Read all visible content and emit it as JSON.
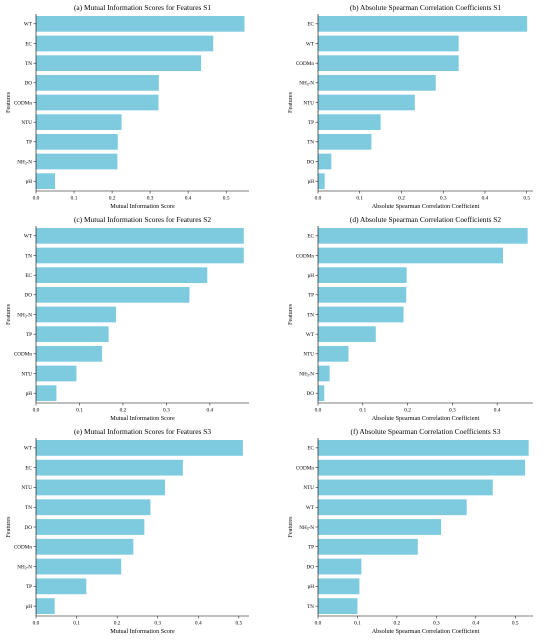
{
  "figure": {
    "bar_color": "#7ecbe0",
    "axis_color": "#000000",
    "background": "#ffffff"
  },
  "chart_data": [
    {
      "type": "bar",
      "orientation": "horizontal",
      "title": "(a) Mutual Information Scores for Features S1",
      "xlabel": "Mutual Information Score",
      "ylabel": "Features",
      "categories": [
        "WT",
        "EC",
        "TN",
        "DO",
        "CODMn",
        "NTU",
        "TP",
        "NH3-N",
        "pH"
      ],
      "values": [
        0.548,
        0.466,
        0.434,
        0.323,
        0.322,
        0.225,
        0.215,
        0.214,
        0.05
      ],
      "xlim": [
        0,
        0.56
      ],
      "xticks": [
        "0.0",
        "0.1",
        "0.2",
        "0.3",
        "0.4",
        "0.5"
      ],
      "xtick_values": [
        0,
        0.1,
        0.2,
        0.3,
        0.4,
        0.5
      ]
    },
    {
      "type": "bar",
      "orientation": "horizontal",
      "title": "(b) Absolute Spearman Correlation Coefficients S1",
      "xlabel": "Absolute Spearman Correlation Coefficient",
      "ylabel": "Features",
      "categories": [
        "EC",
        "WT",
        "CODMn",
        "NH3-N",
        "NTU",
        "TP",
        "TN",
        "DO",
        "pH"
      ],
      "values": [
        0.501,
        0.337,
        0.337,
        0.282,
        0.232,
        0.15,
        0.128,
        0.032,
        0.016
      ],
      "xlim": [
        0,
        0.515
      ],
      "xticks": [
        "0.0",
        "0.1",
        "0.2",
        "0.3",
        "0.4",
        "0.5"
      ],
      "xtick_values": [
        0,
        0.1,
        0.2,
        0.3,
        0.4,
        0.5
      ]
    },
    {
      "type": "bar",
      "orientation": "horizontal",
      "title": "(c) Mutual Information Scores for Features S2",
      "xlabel": "Mutual Information Score",
      "ylabel": "Features",
      "categories": [
        "WT",
        "TN",
        "EC",
        "DO",
        "NH3-N",
        "TP",
        "CODMn",
        "NTU",
        "pH"
      ],
      "values": [
        0.478,
        0.478,
        0.394,
        0.353,
        0.184,
        0.167,
        0.152,
        0.093,
        0.047
      ],
      "xlim": [
        0,
        0.49
      ],
      "xticks": [
        "0.0",
        "0.1",
        "0.2",
        "0.3",
        "0.4"
      ],
      "xtick_values": [
        0,
        0.1,
        0.2,
        0.3,
        0.4
      ]
    },
    {
      "type": "bar",
      "orientation": "horizontal",
      "title": "(d) Absolute Spearman Correlation Coefficients S2",
      "xlabel": "Absolute Spearman Correlation Coefficient",
      "ylabel": "Features",
      "categories": [
        "EC",
        "CODMn",
        "pH",
        "TP",
        "TN",
        "WT",
        "NTU",
        "NH3-N",
        "DO"
      ],
      "values": [
        0.468,
        0.413,
        0.198,
        0.197,
        0.191,
        0.129,
        0.068,
        0.026,
        0.014
      ],
      "xlim": [
        0,
        0.48
      ],
      "xticks": [
        "0.0",
        "0.1",
        "0.2",
        "0.3",
        "0.4"
      ],
      "xtick_values": [
        0,
        0.1,
        0.2,
        0.3,
        0.4
      ]
    },
    {
      "type": "bar",
      "orientation": "horizontal",
      "title": "(e) Mutual Information Scores for Features S3",
      "xlabel": "Mutual Information Score",
      "ylabel": "Features",
      "categories": [
        "WT",
        "EC",
        "NTU",
        "TN",
        "DO",
        "CODMn",
        "NH3-N",
        "TP",
        "pH"
      ],
      "values": [
        0.51,
        0.362,
        0.318,
        0.282,
        0.267,
        0.24,
        0.21,
        0.124,
        0.046
      ],
      "xlim": [
        0,
        0.525
      ],
      "xticks": [
        "0.0",
        "0.1",
        "0.2",
        "0.3",
        "0.4",
        "0.5"
      ],
      "xtick_values": [
        0,
        0.1,
        0.2,
        0.3,
        0.4,
        0.5
      ]
    },
    {
      "type": "bar",
      "orientation": "horizontal",
      "title": "(f) Absolute Spearman Correlation Coefficients S3",
      "xlabel": "Absolute Spearman Correlation Coefficient",
      "ylabel": "Features",
      "categories": [
        "EC",
        "CODMn",
        "NTU",
        "WT",
        "NH3-N",
        "TP",
        "DO",
        "pH",
        "TN"
      ],
      "values": [
        0.534,
        0.525,
        0.443,
        0.377,
        0.312,
        0.253,
        0.11,
        0.105,
        0.1
      ],
      "xlim": [
        0,
        0.545
      ],
      "xticks": [
        "0.0",
        "0.1",
        "0.2",
        "0.3",
        "0.4",
        "0.5"
      ],
      "xtick_values": [
        0,
        0.1,
        0.2,
        0.3,
        0.4,
        0.5
      ]
    }
  ]
}
